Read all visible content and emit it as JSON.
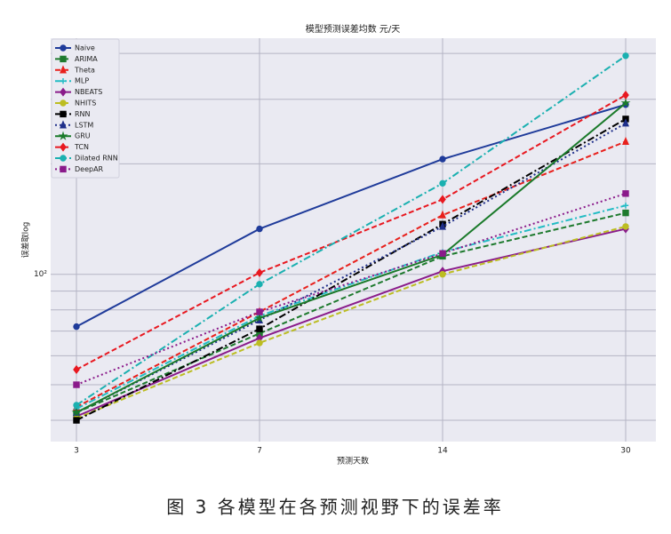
{
  "chart_data": {
    "type": "line",
    "title": "模型预测误差均数 元/天",
    "x_label": "预测天数",
    "y_label": "误差取log",
    "caption": "图 3 各模型在各预测视野下的误差率",
    "categories": [
      "3",
      "7",
      "14",
      "30"
    ],
    "y_log": true,
    "ylim": [
      35,
      440
    ],
    "yticks": [
      {
        "value": 100,
        "label": "10²"
      }
    ],
    "yticks_minor": [
      40,
      50,
      60,
      70,
      80,
      90,
      200,
      300,
      400
    ],
    "grid": true,
    "legend": "upper left",
    "series": [
      {
        "name": "Naive",
        "color": "#1f3b9a",
        "dash": "solid",
        "marker": "circle",
        "values": [
          72,
          133,
          206,
          290
        ]
      },
      {
        "name": "ARIMA",
        "color": "#1e7a2e",
        "dash": "dashed",
        "marker": "square",
        "values": [
          42,
          69,
          112,
          147
        ]
      },
      {
        "name": "Theta",
        "color": "#e8201c",
        "dash": "dashed",
        "marker": "triangle",
        "values": [
          43.5,
          79,
          145,
          230
        ]
      },
      {
        "name": "MLP",
        "color": "#22bcc4",
        "dash": "dashdot",
        "marker": "plus",
        "values": [
          43,
          77,
          115,
          154
        ]
      },
      {
        "name": "NBEATS",
        "color": "#8a1c8a",
        "dash": "solid",
        "marker": "diamond",
        "values": [
          41,
          67,
          102,
          133
        ]
      },
      {
        "name": "NHITS",
        "color": "#bcbd22",
        "dash": "dashed",
        "marker": "circle",
        "values": [
          40.5,
          65,
          100,
          135
        ]
      },
      {
        "name": "RNN",
        "color": "#000000",
        "dash": "dashdot",
        "marker": "square",
        "values": [
          40,
          71,
          137,
          265
        ]
      },
      {
        "name": "LSTM",
        "color": "#1f2f8a",
        "dash": "dotted",
        "marker": "triangle",
        "values": [
          42,
          75,
          135,
          258
        ]
      },
      {
        "name": "GRU",
        "color": "#1a7a2a",
        "dash": "solid",
        "marker": "star",
        "values": [
          42,
          76,
          113,
          293
        ]
      },
      {
        "name": "TCN",
        "color": "#e81820",
        "dash": "dashed",
        "marker": "diamond",
        "values": [
          55,
          101,
          160,
          308
        ]
      },
      {
        "name": "Dilated RNN",
        "color": "#1ab0b0",
        "dash": "dashdot",
        "marker": "circle",
        "values": [
          44,
          94,
          177,
          394
        ]
      },
      {
        "name": "DeepAR",
        "color": "#8a1a8a",
        "dash": "dotted",
        "marker": "square",
        "values": [
          50,
          79,
          114,
          166
        ]
      }
    ]
  }
}
